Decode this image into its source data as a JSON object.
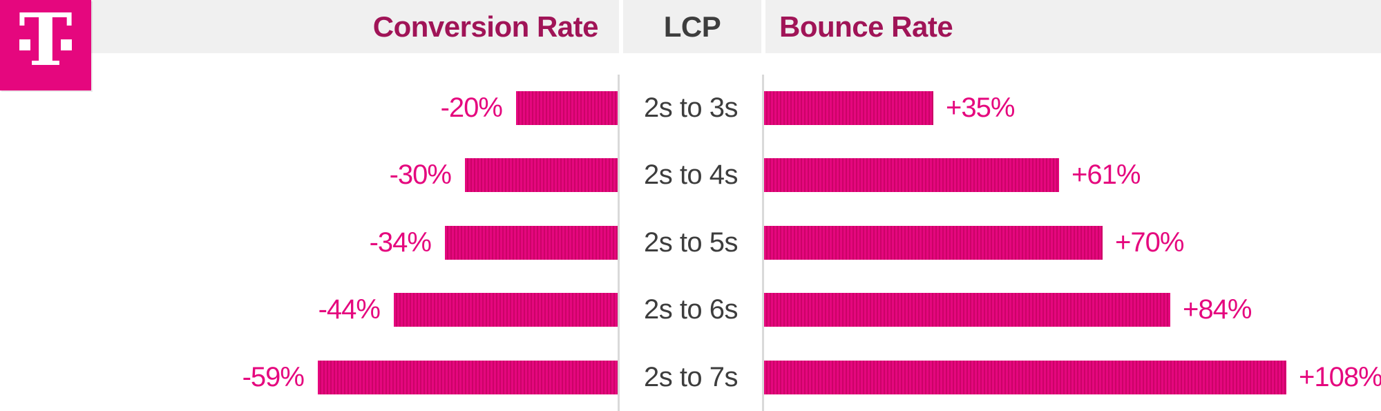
{
  "header": {
    "conversion_label": "Conversion Rate",
    "lcp_label": "LCP",
    "bounce_label": "Bounce Rate"
  },
  "logo": {
    "letter": "T"
  },
  "colors": {
    "magenta": "#e5077e",
    "stripe_dark": "#cb0367",
    "header_magenta": "#a01457",
    "dark_text": "#3d3d3d",
    "header_bg": "#f0f0f0",
    "divider": "#d9d9d9"
  },
  "chart_data": {
    "type": "bar",
    "orientation": "horizontal-diverging",
    "title": "",
    "center_axis_label": "LCP",
    "categories": [
      "2s to 3s",
      "2s to 4s",
      "2s to 5s",
      "2s to 6s",
      "2s to 7s"
    ],
    "series": [
      {
        "name": "Conversion Rate",
        "side": "left",
        "values": [
          -20,
          -30,
          -34,
          -44,
          -59
        ],
        "labels": [
          "-20%",
          "-30%",
          "-34%",
          "-44%",
          "-59%"
        ]
      },
      {
        "name": "Bounce Rate",
        "side": "right",
        "values": [
          35,
          61,
          70,
          84,
          108
        ],
        "labels": [
          "+35%",
          "+61%",
          "+70%",
          "+84%",
          "+108%"
        ]
      }
    ],
    "value_unit": "%",
    "left_axis_range": [
      0,
      -59
    ],
    "right_axis_range": [
      0,
      108
    ],
    "grid": false,
    "legend_position": "top-header"
  }
}
